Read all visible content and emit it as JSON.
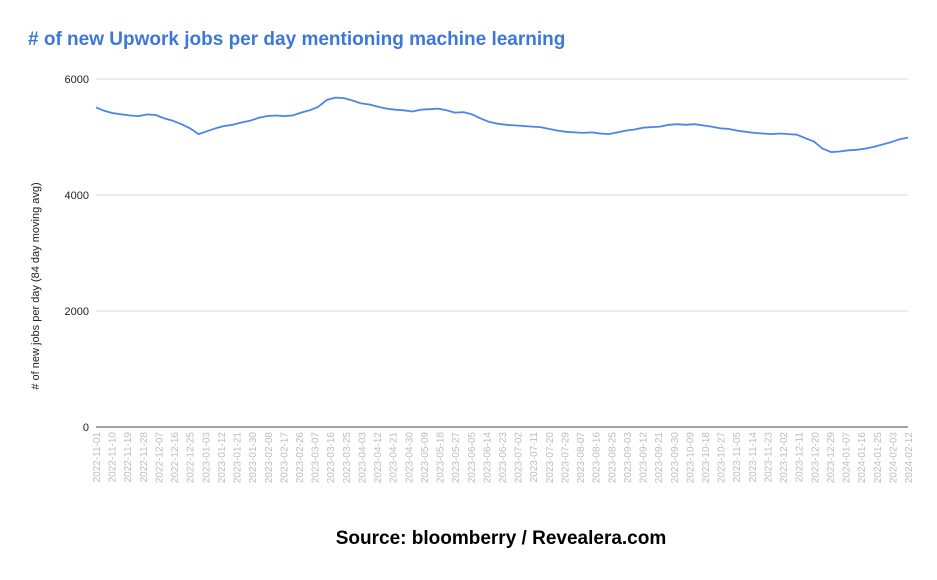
{
  "chart_data": {
    "type": "line",
    "title": "# of new Upwork jobs per day mentioning machine learning",
    "ylabel": "# of new jobs per day (84 day moving avg)",
    "xlabel": "",
    "source": "Source: bloomberry / Revealera.com",
    "ylim": [
      0,
      6000
    ],
    "yticks": [
      0,
      2000,
      4000,
      6000
    ],
    "grid": true,
    "line_color": "#4a86e8",
    "title_color": "#3c78d8",
    "xtick_labels": [
      "2022-11-01",
      "2022-11-10",
      "2022-11-19",
      "2022-11-28",
      "2022-12-07",
      "2022-12-16",
      "2022-12-25",
      "2023-01-03",
      "2023-01-12",
      "2023-01-21",
      "2023-01-30",
      "2023-02-08",
      "2023-02-17",
      "2023-02-26",
      "2023-03-07",
      "2023-03-16",
      "2023-03-25",
      "2023-04-03",
      "2023-04-12",
      "2023-04-21",
      "2023-04-30",
      "2023-05-09",
      "2023-05-18",
      "2023-05-27",
      "2023-06-05",
      "2023-06-14",
      "2023-06-23",
      "2023-07-02",
      "2023-07-11",
      "2023-07-20",
      "2023-07-29",
      "2023-08-07",
      "2023-08-16",
      "2023-08-25",
      "2023-09-03",
      "2023-09-12",
      "2023-09-21",
      "2023-09-30",
      "2023-10-09",
      "2023-10-18",
      "2023-10-27",
      "2023-11-05",
      "2023-11-14",
      "2023-11-23",
      "2023-12-02",
      "2023-12-11",
      "2023-12-20",
      "2023-12-29",
      "2024-01-07",
      "2024-01-16",
      "2024-01-25",
      "2024-02-03",
      "2024-02-12"
    ],
    "series": [
      {
        "values": [
          5510,
          5450,
          5410,
          5390,
          5370,
          5360,
          5390,
          5380,
          5320,
          5280,
          5220,
          5150,
          5050,
          5100,
          5150,
          5190,
          5210,
          5250,
          5280,
          5330,
          5360,
          5370,
          5360,
          5370,
          5420,
          5460,
          5520,
          5640,
          5680,
          5670,
          5630,
          5580,
          5560,
          5520,
          5490,
          5470,
          5460,
          5440,
          5470,
          5480,
          5490,
          5460,
          5420,
          5430,
          5390,
          5320,
          5260,
          5230,
          5210,
          5200,
          5190,
          5180,
          5170,
          5140,
          5110,
          5090,
          5080,
          5070,
          5080,
          5060,
          5050,
          5080,
          5110,
          5130,
          5160,
          5170,
          5180,
          5210,
          5220,
          5210,
          5220,
          5200,
          5180,
          5150,
          5140,
          5110,
          5090,
          5070,
          5060,
          5050,
          5060,
          5050,
          5040,
          4980,
          4920,
          4800,
          4740,
          4750,
          4770,
          4780,
          4800,
          4830,
          4870,
          4910,
          4960,
          4990
        ]
      }
    ]
  }
}
